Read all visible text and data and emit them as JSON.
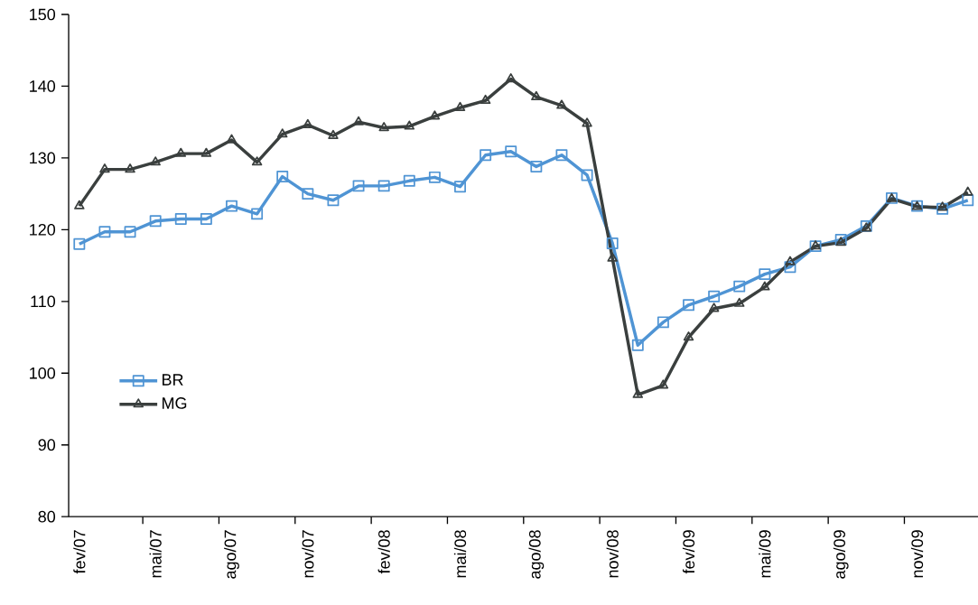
{
  "chart_data": {
    "type": "line",
    "categories": [
      "fev/07",
      null,
      null,
      "mai/07",
      null,
      null,
      "ago/07",
      null,
      null,
      "nov/07",
      null,
      null,
      "fev/08",
      null,
      null,
      "mai/08",
      null,
      null,
      "ago/08",
      null,
      null,
      "nov/08",
      null,
      null,
      "fev/09",
      null,
      null,
      "mai/09",
      null,
      null,
      "ago/09",
      null,
      null,
      "nov/09",
      null,
      null
    ],
    "series": [
      {
        "name": "BR",
        "color": "#4f94d4",
        "marker": "square",
        "values": [
          118,
          119.7,
          119.7,
          121.2,
          121.5,
          121.5,
          123.3,
          122.2,
          127.4,
          125.0,
          124.1,
          126.1,
          126.1,
          126.8,
          127.3,
          126.0,
          130.4,
          130.9,
          128.8,
          130.4,
          127.6,
          118.1,
          103.9,
          107.1,
          109.5,
          110.7,
          112.1,
          113.8,
          114.8,
          117.7,
          118.6,
          120.5,
          124.4,
          123.3,
          122.9,
          124.1
        ]
      },
      {
        "name": "MG",
        "color": "#3a3f3e",
        "marker": "triangle",
        "values": [
          123.3,
          128.4,
          128.4,
          129.4,
          130.6,
          130.6,
          132.5,
          129.4,
          133.3,
          134.6,
          133.1,
          135.0,
          134.2,
          134.4,
          135.8,
          137.0,
          138.0,
          141.0,
          138.5,
          137.3,
          134.8,
          116.0,
          97.0,
          98.3,
          105.0,
          109.0,
          109.7,
          112.0,
          115.5,
          117.7,
          118.2,
          120.2,
          124.3,
          123.2,
          123.1,
          125.2
        ]
      }
    ],
    "ylim": [
      80,
      150
    ],
    "yticks": [
      80,
      90,
      100,
      110,
      120,
      130,
      140,
      150
    ],
    "grid": false,
    "legend": "bottom left",
    "line_style": "solid"
  }
}
